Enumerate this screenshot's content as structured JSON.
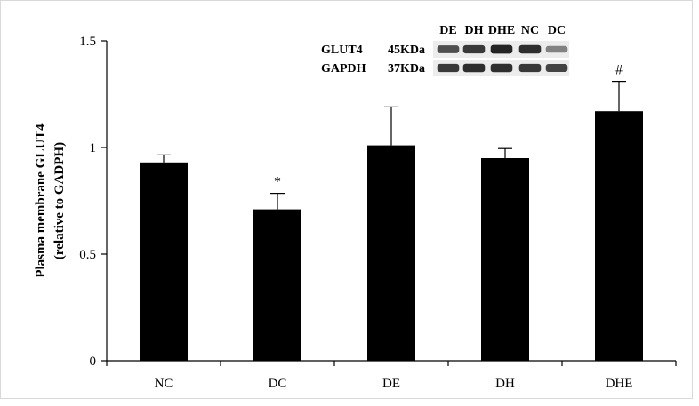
{
  "chart_data": {
    "type": "bar",
    "categories": [
      "NC",
      "DC",
      "DE",
      "DH",
      "DHE"
    ],
    "values": [
      0.93,
      0.71,
      1.01,
      0.95,
      1.17
    ],
    "errors": [
      0.035,
      0.075,
      0.18,
      0.045,
      0.14
    ],
    "annotations": [
      "",
      "*",
      "",
      "",
      "#"
    ],
    "ylabel_line1": "Plasma membrane GLUT4",
    "ylabel_line2": "(relative to GADPH)",
    "xlabel": "",
    "ylim": [
      0,
      1.5
    ],
    "yticks": [
      0,
      0.5,
      1,
      1.5
    ],
    "ytick_labels": [
      "0",
      "0.5",
      "1",
      "1.5"
    ],
    "bar_color": "#000000",
    "grid": false
  },
  "blot_inset": {
    "lanes": [
      "DE",
      "DH",
      "DHE",
      "NC",
      "DC"
    ],
    "rows": [
      {
        "protein": "GLUT4",
        "size": "45KDa",
        "intensity": [
          0.75,
          0.85,
          0.95,
          0.9,
          0.5
        ]
      },
      {
        "protein": "GAPDH",
        "size": "37KDa",
        "intensity": [
          0.85,
          0.9,
          0.9,
          0.85,
          0.8
        ]
      }
    ]
  }
}
